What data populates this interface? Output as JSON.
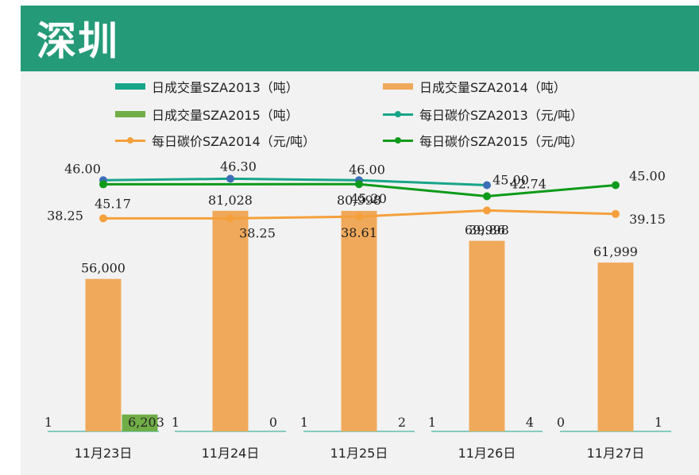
{
  "title": "深圳",
  "legend": {
    "bar2013": "日成交量SZA2013（吨）",
    "bar2014": "日成交量SZA2014（吨）",
    "bar2015": "日成交量SZA2015（吨）",
    "line2013": "每日碳价SZA2013（元/吨）",
    "line2014": "每日碳价SZA2014（元/吨）",
    "line2015": "每日碳价SZA2015（元/吨）"
  },
  "colors": {
    "bar2013": "#17a589",
    "bar2014": "#f0a95a",
    "bar2015": "#70ad47",
    "line2013": "#17a589",
    "line2014": "#f5a03c",
    "line2015": "#0e9a1a",
    "marker2013": "#3d6fb6"
  },
  "chart_data": {
    "type": "bar+line",
    "categories": [
      "11月23日",
      "11月24日",
      "11月25日",
      "11月26日",
      "11月27日"
    ],
    "bar_series": [
      {
        "name": "日成交量SZA2013（吨）",
        "values": [
          1,
          1,
          1,
          1,
          0
        ],
        "labels": [
          "1",
          "1",
          "1",
          "1",
          "0"
        ]
      },
      {
        "name": "日成交量SZA2014（吨）",
        "values": [
          56000,
          81028,
          80998,
          69998,
          61999
        ],
        "labels": [
          "56,000",
          "81,028",
          "80,998",
          "69,998",
          "61,999"
        ]
      },
      {
        "name": "日成交量SZA2015（吨）",
        "values": [
          6203,
          0,
          2,
          4,
          1
        ],
        "labels": [
          "6,203",
          "0",
          "2",
          "4",
          "1"
        ]
      }
    ],
    "bar_ylim": [
      0,
      90000
    ],
    "line_series": [
      {
        "name": "每日碳价SZA2013（元/吨）",
        "values": [
          46.0,
          46.3,
          46.0,
          45.0,
          null
        ],
        "labels": [
          "46.00",
          "46.30",
          "46.00",
          "45.00",
          ""
        ]
      },
      {
        "name": "每日碳价SZA2014（元/吨）",
        "values": [
          38.25,
          38.25,
          38.61,
          39.86,
          39.15
        ],
        "labels": [
          "38.25",
          "38.25",
          "38.61",
          "39.86",
          "39.15"
        ]
      },
      {
        "name": "每日碳价SZA2015（元/吨）",
        "values": [
          45.17,
          null,
          45.2,
          42.74,
          45.0
        ],
        "labels": [
          "45.17",
          "",
          "45.20",
          "42.74",
          "45.00"
        ]
      }
    ],
    "line_ylim": [
      -5,
      52
    ]
  }
}
